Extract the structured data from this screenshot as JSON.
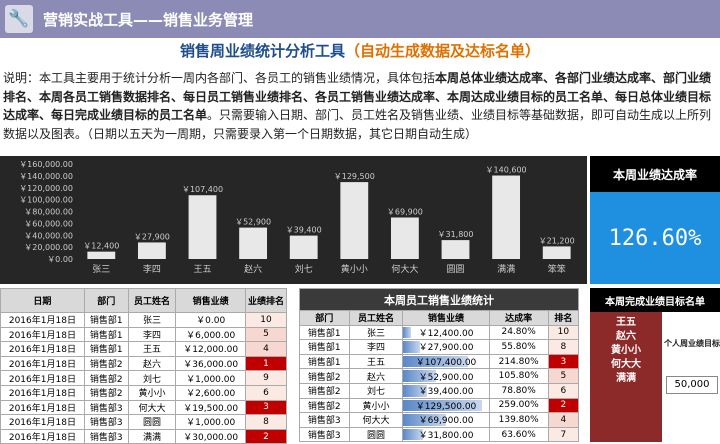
{
  "header": {
    "title": "营销实战工具——销售业务管理",
    "icon": "wrench-icon"
  },
  "subtitle": {
    "main": "销售周业绩统计分析工具",
    "note": "（自动生成数据及达标名单）"
  },
  "description": {
    "p1": "说明：本工具主要用于统计分析一周内各部门、各员工的销售业绩情况，具体包括",
    "b1": "本周总体业绩达成率、各部门业绩达成率、部门业绩排名、本周各员工销售数据排名、每日员工销售业绩排名、各员工销售业绩达成率、本周达成业绩目标的员工名单、每日总体业绩目标达成率、每日完成业绩目标的员工名单",
    "p2": "。只需要输入日期、部门、员工姓名及销售业绩、业绩目标等基础数据，即可自动生成以上所列数据以及图表。（日期以五天为一周期，只需要录入第一个日期数据，其它日期自动生成）"
  },
  "chart_data": {
    "type": "bar",
    "categories": [
      "张三",
      "李四",
      "王五",
      "赵六",
      "刘七",
      "黄小小",
      "何大大",
      "圆圆",
      "满满",
      "笨笨"
    ],
    "values": [
      12400,
      27900,
      107400,
      52900,
      39400,
      129500,
      69900,
      31800,
      140600,
      21200
    ],
    "labels": [
      "￥12,400",
      "￥27,900",
      "￥107,400",
      "￥52,900",
      "￥39,400",
      "￥129,500",
      "￥69,900",
      "￥31,800",
      "￥140,600",
      "￥21,200"
    ],
    "yticks": [
      "￥160,000.00",
      "￥140,000.00",
      "￥120,000.00",
      "￥100,000.00",
      "￥80,000.00",
      "￥60,000.00",
      "￥40,000.00",
      "￥20,000.00",
      "￥0.00"
    ],
    "ylim": [
      0,
      160000
    ],
    "colors": {
      "bg": "#262626",
      "bar": "#e8e8e8",
      "text": "#cccccc"
    }
  },
  "kpi": {
    "label": "本周业绩达成率",
    "value": "126.60%"
  },
  "daily": {
    "headers": [
      "日期",
      "部门",
      "员工姓名",
      "销售业绩",
      "业绩排名"
    ],
    "rows": [
      [
        "2016年1月18日",
        "销售部1",
        "张三",
        "￥0.00",
        "10"
      ],
      [
        "2016年1月18日",
        "销售部1",
        "李四",
        "￥6,000.00",
        "5"
      ],
      [
        "2016年1月18日",
        "销售部1",
        "王五",
        "￥12,000.00",
        "4"
      ],
      [
        "2016年1月18日",
        "销售部2",
        "赵六",
        "￥36,000.00",
        "1"
      ],
      [
        "2016年1月18日",
        "销售部2",
        "刘七",
        "￥1,000.00",
        "9"
      ],
      [
        "2016年1月18日",
        "销售部2",
        "黄小小",
        "￥2,600.00",
        "6"
      ],
      [
        "2016年1月18日",
        "销售部3",
        "何大大",
        "￥19,500.00",
        "3"
      ],
      [
        "2016年1月18日",
        "销售部3",
        "圆圆",
        "￥1,000.00",
        "8"
      ],
      [
        "2016年1月18日",
        "销售部3",
        "满满",
        "￥30,000.00",
        "2"
      ]
    ]
  },
  "weekly": {
    "title": "本周员工销售业绩统计",
    "headers": [
      "部门",
      "员工姓名",
      "销售业绩",
      "达成率",
      "排名"
    ],
    "rows": [
      [
        "销售部1",
        "张三",
        "￥12,400.00",
        "24.80%",
        "10",
        0.09
      ],
      [
        "销售部1",
        "李四",
        "￥27,900.00",
        "55.80%",
        "8",
        0.2
      ],
      [
        "销售部1",
        "王五",
        "￥107,400.00",
        "214.80%",
        "3",
        0.76
      ],
      [
        "销售部2",
        "赵六",
        "￥52,900.00",
        "105.80%",
        "5",
        0.38
      ],
      [
        "销售部2",
        "刘七",
        "￥39,400.00",
        "78.80%",
        "6",
        0.28
      ],
      [
        "销售部2",
        "黄小小",
        "￥129,500.00",
        "259.00%",
        "2",
        0.92
      ],
      [
        "销售部3",
        "何大大",
        "￥69,900.00",
        "139.80%",
        "4",
        0.5
      ],
      [
        "销售部3",
        "圆圆",
        "￥31,800.00",
        "63.60%",
        "7",
        0.23
      ]
    ]
  },
  "achievers": {
    "title": "本周完成业绩目标名单",
    "names": [
      "王五",
      "赵六",
      "黄小小",
      "何大大",
      "满满"
    ],
    "target_label": "个人周业绩目标",
    "target_value": "50,000"
  }
}
